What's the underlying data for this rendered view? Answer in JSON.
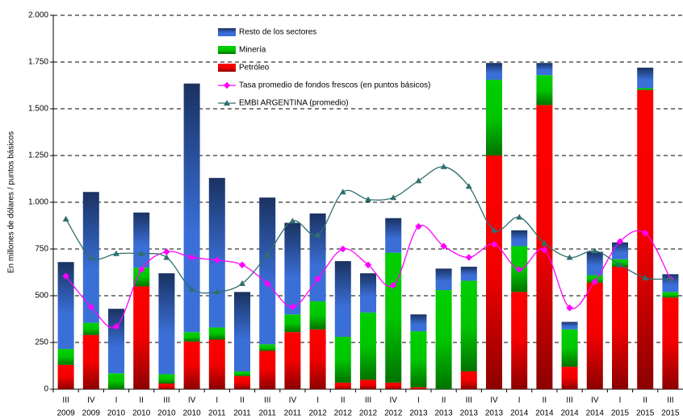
{
  "chart_data": {
    "type": "bar",
    "y_label": "En millones de dólares / puntos básicos",
    "categories": [
      "III",
      "IV",
      "I",
      "II",
      "III",
      "IV",
      "I",
      "II",
      "III",
      "IV",
      "I",
      "II",
      "III",
      "IV",
      "I",
      "II",
      "III",
      "IV",
      "I",
      "II",
      "III",
      "IV",
      "I",
      "II",
      "III"
    ],
    "category_years": [
      "2009",
      "2009",
      "2010",
      "2010",
      "2010",
      "2010",
      "2011",
      "2011",
      "2011",
      "2011",
      "2012",
      "2012",
      "2012",
      "2012",
      "2013",
      "2013",
      "2013",
      "2013",
      "2014",
      "2014",
      "2014",
      "2014",
      "2015",
      "2015",
      "2015"
    ],
    "ylim": [
      0,
      2000
    ],
    "yticks": [
      0,
      250,
      500,
      750,
      {
        "value": 1000,
        "label": "1.000"
      },
      {
        "value": 1250,
        "label": "1.250"
      },
      {
        "value": 1500,
        "label": "1.500"
      },
      {
        "value": 1750,
        "label": "1.750"
      },
      {
        "value": 2000,
        "label": "2.000"
      }
    ],
    "grid": true,
    "legend": "upper left",
    "series": [
      {
        "name": "Resto de los sectores",
        "type": "bar",
        "color": "#3a6fd8",
        "values": [
          465,
          700,
          345,
          295,
          540,
          1330,
          800,
          425,
          785,
          490,
          470,
          405,
          210,
          185,
          90,
          115,
          75,
          90,
          85,
          65,
          40,
          125,
          90,
          110,
          95
        ]
      },
      {
        "name": "Minería",
        "type": "bar",
        "color": "#00d000",
        "values": [
          85,
          65,
          85,
          100,
          50,
          50,
          65,
          25,
          35,
          95,
          150,
          245,
          360,
          695,
          300,
          530,
          485,
          405,
          245,
          160,
          200,
          40,
          40,
          10,
          30
        ]
      },
      {
        "name": "Petróleo",
        "type": "bar",
        "color": "#ff0000",
        "values": [
          130,
          290,
          0,
          550,
          30,
          255,
          265,
          70,
          205,
          305,
          320,
          35,
          50,
          35,
          10,
          0,
          95,
          1250,
          520,
          1520,
          120,
          570,
          655,
          1600,
          490
        ]
      },
      {
        "name": "Tasa promedio de fondos frescos (en puntos básicos)",
        "type": "line",
        "color": "#ff00ff",
        "values": [
          605,
          440,
          335,
          640,
          735,
          705,
          690,
          665,
          565,
          440,
          590,
          750,
          665,
          555,
          870,
          765,
          705,
          775,
          640,
          745,
          435,
          575,
          790,
          835,
          590
        ]
      },
      {
        "name": "EMBI ARGENTINA (promedio)",
        "type": "line",
        "color": "#2f6f6f",
        "values": [
          910,
          705,
          725,
          725,
          705,
          535,
          520,
          565,
          720,
          900,
          825,
          1055,
          1015,
          1025,
          1115,
          1190,
          1085,
          850,
          920,
          780,
          705,
          740,
          665,
          595,
          590
        ]
      }
    ]
  }
}
